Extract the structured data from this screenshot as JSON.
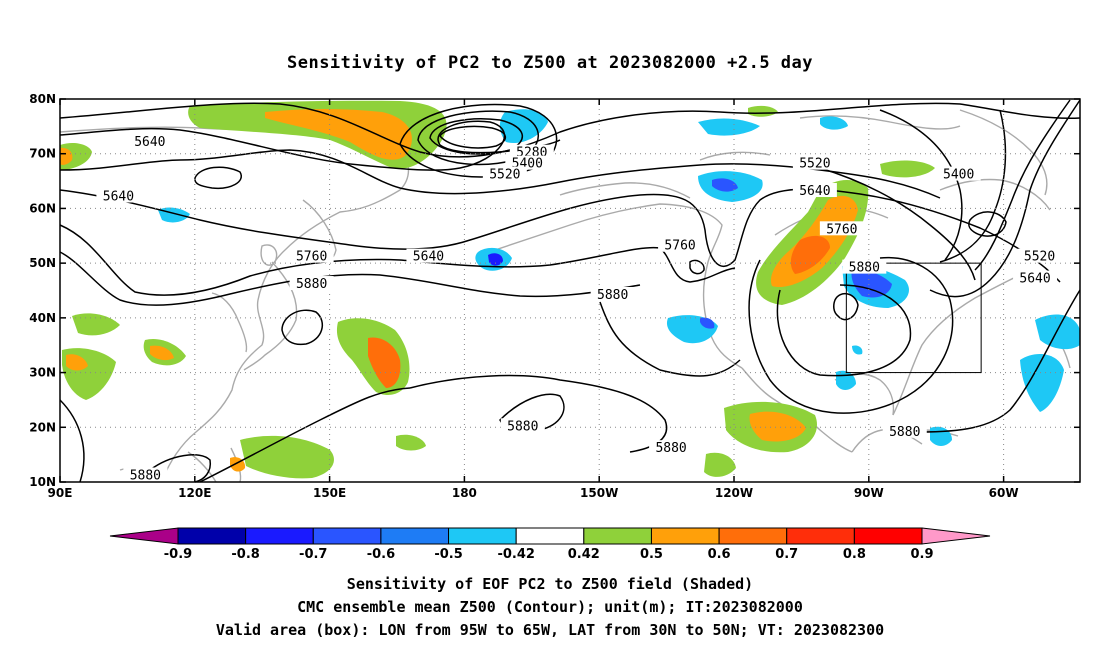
{
  "title": "Sensitivity of PC2 to Z500 at 2023082000 +2.5 day",
  "map": {
    "lon_ticks": [
      {
        "lon": 90,
        "label": "90E"
      },
      {
        "lon": 120,
        "label": "120E"
      },
      {
        "lon": 150,
        "label": "150E"
      },
      {
        "lon": 180,
        "label": "180"
      },
      {
        "lon": 210,
        "label": "150W"
      },
      {
        "lon": 240,
        "label": "120W"
      },
      {
        "lon": 270,
        "label": "90W"
      },
      {
        "lon": 300,
        "label": "60W"
      }
    ],
    "lat_ticks": [
      {
        "lat": 80,
        "label": "80N"
      },
      {
        "lat": 70,
        "label": "70N"
      },
      {
        "lat": 60,
        "label": "60N"
      },
      {
        "lat": 50,
        "label": "50N"
      },
      {
        "lat": 40,
        "label": "40N"
      },
      {
        "lat": 30,
        "label": "30N"
      },
      {
        "lat": 20,
        "label": "20N"
      },
      {
        "lat": 10,
        "label": "10N"
      }
    ],
    "lon_range": [
      90,
      317
    ],
    "lat_range": [
      10,
      80
    ],
    "grid": "dotted",
    "valid_box": {
      "lon_min": 265,
      "lon_max": 295,
      "lat_min": 30,
      "lat_max": 50
    },
    "contour_labels": [
      {
        "text": "5640",
        "lon": 110,
        "lat": 72
      },
      {
        "text": "5640",
        "lon": 103,
        "lat": 62
      },
      {
        "text": "5280",
        "lon": 195,
        "lat": 70
      },
      {
        "text": "5400",
        "lon": 194,
        "lat": 68
      },
      {
        "text": "5520",
        "lon": 189,
        "lat": 66
      },
      {
        "text": "5520",
        "lon": 258,
        "lat": 68
      },
      {
        "text": "5640",
        "lon": 258,
        "lat": 63
      },
      {
        "text": "5400",
        "lon": 290,
        "lat": 66
      },
      {
        "text": "5520",
        "lon": 308,
        "lat": 51
      },
      {
        "text": "5640",
        "lon": 307,
        "lat": 47
      },
      {
        "text": "5640",
        "lon": 172,
        "lat": 51
      },
      {
        "text": "5760",
        "lon": 146,
        "lat": 51
      },
      {
        "text": "5880",
        "lon": 146,
        "lat": 46
      },
      {
        "text": "5760",
        "lon": 228,
        "lat": 53
      },
      {
        "text": "5760",
        "lon": 264,
        "lat": 56
      },
      {
        "text": "5880",
        "lon": 213,
        "lat": 44
      },
      {
        "text": "5880",
        "lon": 269,
        "lat": 49
      },
      {
        "text": "5880",
        "lon": 193,
        "lat": 20
      },
      {
        "text": "5880",
        "lon": 226,
        "lat": 16
      },
      {
        "text": "5880",
        "lon": 278,
        "lat": 19
      },
      {
        "text": "5880",
        "lon": 109,
        "lat": 11
      }
    ]
  },
  "colorbar": {
    "labels": [
      "-0.9",
      "-0.8",
      "-0.7",
      "-0.6",
      "-0.5",
      "-0.42",
      "0.42",
      "0.5",
      "0.6",
      "0.7",
      "0.8",
      "0.9"
    ],
    "colors": [
      "#aa0088",
      "#0000aa",
      "#1a1aff",
      "#2a55ff",
      "#1e7cf5",
      "#1ec8f5",
      "#ffffff",
      "#8fd13a",
      "#ffa00a",
      "#ff6e0a",
      "#ff2e0a",
      "#ff0000",
      "#ff99c9"
    ]
  },
  "captions": [
    "Sensitivity of EOF PC2 to Z500 field (Shaded)",
    "CMC ensemble mean Z500 (Contour); unit(m); IT:2023082000",
    "Valid area (box): LON from 95W to 65W, LAT from 30N to 50N; VT: 2023082300"
  ]
}
